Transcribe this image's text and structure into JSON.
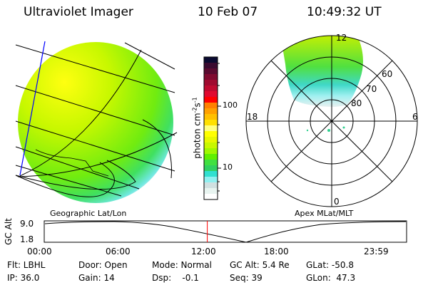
{
  "header": {
    "instrument": "Ultraviolet Imager",
    "date": "10 Feb 07",
    "time": "10:49:32 UT"
  },
  "colorbar": {
    "label": "photon cm",
    "label_sup1": "-2",
    "label_s": "s",
    "label_sup2": "-1",
    "ticks": [
      "100",
      "10"
    ],
    "colors": [
      "#0a0a30",
      "#3a0a30",
      "#5a0a30",
      "#800a30",
      "#a00a30",
      "#c00a30",
      "#e00a30",
      "#ff0000",
      "#ff8000",
      "#ffa000",
      "#ffc000",
      "#ffe000",
      "#ffff80",
      "#ffff00",
      "#e8f800",
      "#c8f800",
      "#a0f800",
      "#60f000",
      "#40e040",
      "#30d060",
      "#30e0d0",
      "#90f0f0",
      "#d0e0e0",
      "#e8f4f0",
      "#ffffff"
    ]
  },
  "geo_panel": {
    "label": "Geographic Lat/Lon"
  },
  "polar_panel": {
    "label": "Apex MLat/MLT",
    "mlt_labels": {
      "top": "12",
      "left": "18",
      "right": "6",
      "bottom": "0"
    },
    "lat_labels": [
      "80",
      "70",
      "60"
    ]
  },
  "timeline": {
    "ylabel": "GC Alt",
    "yticks": [
      "9.0",
      "1.8"
    ],
    "xticks": [
      "00:00",
      "06:00",
      "12:00",
      "18:00",
      "23:59"
    ],
    "current_time_fraction": 0.45
  },
  "status": {
    "flt": "Flt: LBHL",
    "ip": "IP: 36.0",
    "door": "Door: Open",
    "gain": "Gain: 14",
    "mode": "Mode: Normal",
    "dsp": "Dsp:    -0.1",
    "gcalt": "GC Alt: 5.4 Re",
    "seq": "Seq: 39",
    "glat": "GLat: -50.8",
    "glon": "GLon:  47.3"
  }
}
